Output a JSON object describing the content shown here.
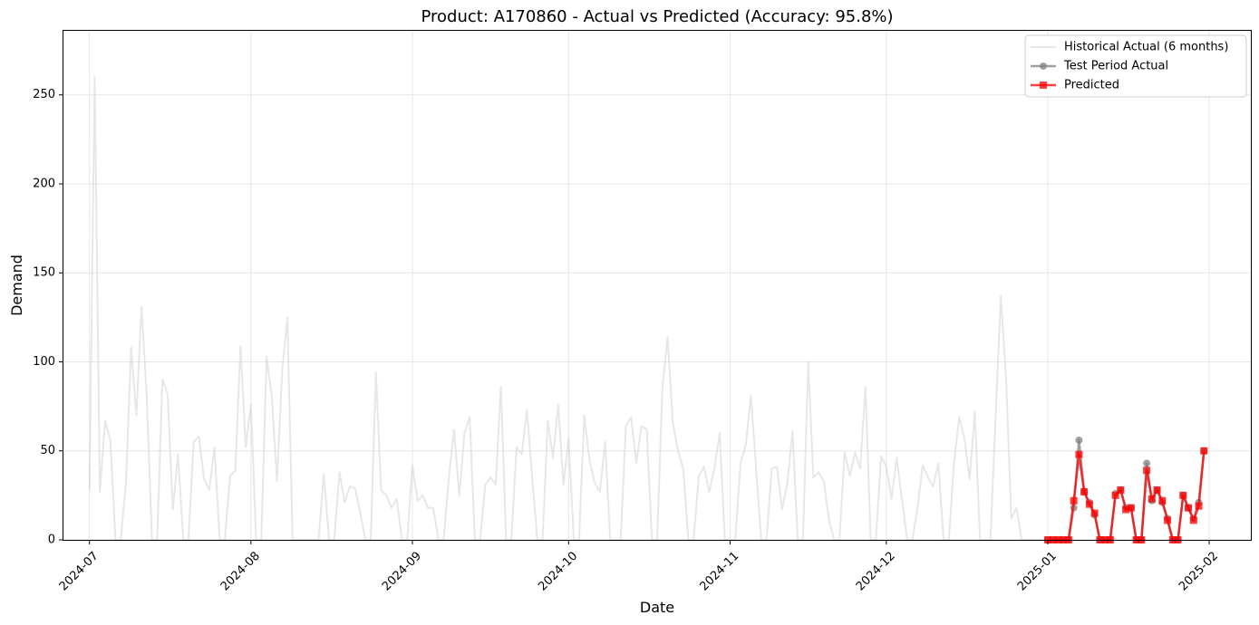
{
  "chart_data": {
    "type": "line",
    "title": "Product: A170860 - Actual vs Predicted (Accuracy: 95.8%)",
    "xlabel": "Date",
    "ylabel": "Demand",
    "xlim": [
      "2024-06-26",
      "2025-02-09"
    ],
    "ylim": [
      0,
      286
    ],
    "x_ticks": [
      "2024-07",
      "2024-08",
      "2024-09",
      "2024-10",
      "2024-11",
      "2024-12",
      "2025-01",
      "2025-02"
    ],
    "y_ticks": [
      0,
      50,
      100,
      150,
      200,
      250
    ],
    "grid": true,
    "legend_position": "top-right",
    "series": [
      {
        "name": "Historical Actual (6 months)",
        "color": "#d3d3d3",
        "marker": "none",
        "values": [
          [
            "2024-07-01",
            28
          ],
          [
            "2024-07-02",
            260
          ],
          [
            "2024-07-03",
            27
          ],
          [
            "2024-07-04",
            67
          ],
          [
            "2024-07-05",
            56
          ],
          [
            "2024-07-06",
            0
          ],
          [
            "2024-07-07",
            0
          ],
          [
            "2024-07-08",
            32
          ],
          [
            "2024-07-09",
            108
          ],
          [
            "2024-07-10",
            70
          ],
          [
            "2024-07-11",
            131
          ],
          [
            "2024-07-12",
            80
          ],
          [
            "2024-07-13",
            0
          ],
          [
            "2024-07-14",
            0
          ],
          [
            "2024-07-15",
            90
          ],
          [
            "2024-07-16",
            82
          ],
          [
            "2024-07-17",
            17
          ],
          [
            "2024-07-18",
            48
          ],
          [
            "2024-07-19",
            0
          ],
          [
            "2024-07-20",
            0
          ],
          [
            "2024-07-21",
            55
          ],
          [
            "2024-07-22",
            58
          ],
          [
            "2024-07-23",
            34
          ],
          [
            "2024-07-24",
            28
          ],
          [
            "2024-07-25",
            52
          ],
          [
            "2024-07-26",
            0
          ],
          [
            "2024-07-27",
            0
          ],
          [
            "2024-07-28",
            36
          ],
          [
            "2024-07-29",
            39
          ],
          [
            "2024-07-30",
            109
          ],
          [
            "2024-07-31",
            52
          ],
          [
            "2024-08-01",
            76
          ],
          [
            "2024-08-02",
            0
          ],
          [
            "2024-08-03",
            0
          ],
          [
            "2024-08-04",
            103
          ],
          [
            "2024-08-05",
            81
          ],
          [
            "2024-08-06",
            33
          ],
          [
            "2024-08-07",
            95
          ],
          [
            "2024-08-08",
            125
          ],
          [
            "2024-08-09",
            0
          ],
          [
            "2024-08-10",
            0
          ],
          [
            "2024-08-11",
            0
          ],
          [
            "2024-08-12",
            0
          ],
          [
            "2024-08-13",
            0
          ],
          [
            "2024-08-14",
            0
          ],
          [
            "2024-08-15",
            37
          ],
          [
            "2024-08-16",
            0
          ],
          [
            "2024-08-17",
            0
          ],
          [
            "2024-08-18",
            38
          ],
          [
            "2024-08-19",
            21
          ],
          [
            "2024-08-20",
            30
          ],
          [
            "2024-08-21",
            29
          ],
          [
            "2024-08-22",
            15
          ],
          [
            "2024-08-23",
            0
          ],
          [
            "2024-08-24",
            0
          ],
          [
            "2024-08-25",
            94
          ],
          [
            "2024-08-26",
            28
          ],
          [
            "2024-08-27",
            25
          ],
          [
            "2024-08-28",
            18
          ],
          [
            "2024-08-29",
            23
          ],
          [
            "2024-08-30",
            0
          ],
          [
            "2024-08-31",
            0
          ],
          [
            "2024-09-01",
            42
          ],
          [
            "2024-09-02",
            22
          ],
          [
            "2024-09-03",
            25
          ],
          [
            "2024-09-04",
            18
          ],
          [
            "2024-09-05",
            18
          ],
          [
            "2024-09-06",
            0
          ],
          [
            "2024-09-07",
            0
          ],
          [
            "2024-09-08",
            35
          ],
          [
            "2024-09-09",
            62
          ],
          [
            "2024-09-10",
            25
          ],
          [
            "2024-09-11",
            60
          ],
          [
            "2024-09-12",
            69
          ],
          [
            "2024-09-13",
            0
          ],
          [
            "2024-09-14",
            0
          ],
          [
            "2024-09-15",
            31
          ],
          [
            "2024-09-16",
            35
          ],
          [
            "2024-09-17",
            31
          ],
          [
            "2024-09-18",
            86
          ],
          [
            "2024-09-19",
            0
          ],
          [
            "2024-09-20",
            0
          ],
          [
            "2024-09-21",
            52
          ],
          [
            "2024-09-22",
            48
          ],
          [
            "2024-09-23",
            73
          ],
          [
            "2024-09-24",
            35
          ],
          [
            "2024-09-25",
            0
          ],
          [
            "2024-09-26",
            0
          ],
          [
            "2024-09-27",
            67
          ],
          [
            "2024-09-28",
            46
          ],
          [
            "2024-09-29",
            76
          ],
          [
            "2024-09-30",
            31
          ],
          [
            "2024-10-01",
            57
          ],
          [
            "2024-10-02",
            0
          ],
          [
            "2024-10-03",
            0
          ],
          [
            "2024-10-04",
            70
          ],
          [
            "2024-10-05",
            45
          ],
          [
            "2024-10-06",
            32
          ],
          [
            "2024-10-07",
            27
          ],
          [
            "2024-10-08",
            55
          ],
          [
            "2024-10-09",
            0
          ],
          [
            "2024-10-10",
            0
          ],
          [
            "2024-10-11",
            0
          ],
          [
            "2024-10-12",
            64
          ],
          [
            "2024-10-13",
            69
          ],
          [
            "2024-10-14",
            43
          ],
          [
            "2024-10-15",
            64
          ],
          [
            "2024-10-16",
            62
          ],
          [
            "2024-10-17",
            0
          ],
          [
            "2024-10-18",
            0
          ],
          [
            "2024-10-19",
            85
          ],
          [
            "2024-10-20",
            114
          ],
          [
            "2024-10-21",
            66
          ],
          [
            "2024-10-22",
            50
          ],
          [
            "2024-10-23",
            40
          ],
          [
            "2024-10-24",
            0
          ],
          [
            "2024-10-25",
            0
          ],
          [
            "2024-10-26",
            36
          ],
          [
            "2024-10-27",
            41
          ],
          [
            "2024-10-28",
            27
          ],
          [
            "2024-10-29",
            40
          ],
          [
            "2024-10-30",
            60
          ],
          [
            "2024-10-31",
            0
          ],
          [
            "2024-11-01",
            0
          ],
          [
            "2024-11-02",
            0
          ],
          [
            "2024-11-03",
            43
          ],
          [
            "2024-11-04",
            53
          ],
          [
            "2024-11-05",
            81
          ],
          [
            "2024-11-06",
            40
          ],
          [
            "2024-11-07",
            0
          ],
          [
            "2024-11-08",
            0
          ],
          [
            "2024-11-09",
            40
          ],
          [
            "2024-11-10",
            41
          ],
          [
            "2024-11-11",
            17
          ],
          [
            "2024-11-12",
            32
          ],
          [
            "2024-11-13",
            61
          ],
          [
            "2024-11-14",
            0
          ],
          [
            "2024-11-15",
            0
          ],
          [
            "2024-11-16",
            100
          ],
          [
            "2024-11-17",
            35
          ],
          [
            "2024-11-18",
            38
          ],
          [
            "2024-11-19",
            33
          ],
          [
            "2024-11-20",
            11
          ],
          [
            "2024-11-21",
            0
          ],
          [
            "2024-11-22",
            0
          ],
          [
            "2024-11-23",
            49
          ],
          [
            "2024-11-24",
            36
          ],
          [
            "2024-11-25",
            49
          ],
          [
            "2024-11-26",
            40
          ],
          [
            "2024-11-27",
            86
          ],
          [
            "2024-11-28",
            0
          ],
          [
            "2024-11-29",
            0
          ],
          [
            "2024-11-30",
            47
          ],
          [
            "2024-12-01",
            41
          ],
          [
            "2024-12-02",
            23
          ],
          [
            "2024-12-03",
            46
          ],
          [
            "2024-12-04",
            23
          ],
          [
            "2024-12-05",
            0
          ],
          [
            "2024-12-06",
            0
          ],
          [
            "2024-12-07",
            18
          ],
          [
            "2024-12-08",
            42
          ],
          [
            "2024-12-09",
            35
          ],
          [
            "2024-12-10",
            30
          ],
          [
            "2024-12-11",
            43
          ],
          [
            "2024-12-12",
            0
          ],
          [
            "2024-12-13",
            0
          ],
          [
            "2024-12-14",
            43
          ],
          [
            "2024-12-15",
            69
          ],
          [
            "2024-12-16",
            57
          ],
          [
            "2024-12-17",
            34
          ],
          [
            "2024-12-18",
            72
          ],
          [
            "2024-12-19",
            0
          ],
          [
            "2024-12-20",
            0
          ],
          [
            "2024-12-21",
            0
          ],
          [
            "2024-12-22",
            70
          ],
          [
            "2024-12-23",
            137
          ],
          [
            "2024-12-24",
            91
          ],
          [
            "2024-12-25",
            12
          ],
          [
            "2024-12-26",
            18
          ],
          [
            "2024-12-27",
            0
          ],
          [
            "2024-12-28",
            0
          ],
          [
            "2024-12-29",
            0
          ],
          [
            "2024-12-30",
            0
          ],
          [
            "2024-12-31",
            0
          ]
        ]
      },
      {
        "name": "Test Period Actual",
        "color": "#808080",
        "marker": "circle",
        "values": [
          [
            "2025-01-01",
            0
          ],
          [
            "2025-01-02",
            0
          ],
          [
            "2025-01-03",
            0
          ],
          [
            "2025-01-04",
            0
          ],
          [
            "2025-01-05",
            0
          ],
          [
            "2025-01-06",
            18
          ],
          [
            "2025-01-07",
            56
          ],
          [
            "2025-01-08",
            27
          ],
          [
            "2025-01-09",
            21
          ],
          [
            "2025-01-10",
            14
          ],
          [
            "2025-01-11",
            0
          ],
          [
            "2025-01-12",
            0
          ],
          [
            "2025-01-13",
            0
          ],
          [
            "2025-01-14",
            26
          ],
          [
            "2025-01-15",
            28
          ],
          [
            "2025-01-16",
            18
          ],
          [
            "2025-01-17",
            18
          ],
          [
            "2025-01-18",
            0
          ],
          [
            "2025-01-19",
            0
          ],
          [
            "2025-01-20",
            43
          ],
          [
            "2025-01-21",
            22
          ],
          [
            "2025-01-22",
            28
          ],
          [
            "2025-01-23",
            21
          ],
          [
            "2025-01-24",
            12
          ],
          [
            "2025-01-25",
            0
          ],
          [
            "2025-01-26",
            0
          ],
          [
            "2025-01-27",
            25
          ],
          [
            "2025-01-28",
            18
          ],
          [
            "2025-01-29",
            12
          ],
          [
            "2025-01-30",
            21
          ],
          [
            "2025-01-31",
            50
          ]
        ]
      },
      {
        "name": "Predicted",
        "color": "#ff0000",
        "marker": "square",
        "values": [
          [
            "2025-01-01",
            0
          ],
          [
            "2025-01-02",
            0
          ],
          [
            "2025-01-03",
            0
          ],
          [
            "2025-01-04",
            0
          ],
          [
            "2025-01-05",
            0
          ],
          [
            "2025-01-06",
            22
          ],
          [
            "2025-01-07",
            48
          ],
          [
            "2025-01-08",
            27
          ],
          [
            "2025-01-09",
            20
          ],
          [
            "2025-01-10",
            15
          ],
          [
            "2025-01-11",
            0
          ],
          [
            "2025-01-12",
            0
          ],
          [
            "2025-01-13",
            0
          ],
          [
            "2025-01-14",
            25
          ],
          [
            "2025-01-15",
            28
          ],
          [
            "2025-01-16",
            17
          ],
          [
            "2025-01-17",
            18
          ],
          [
            "2025-01-18",
            0
          ],
          [
            "2025-01-19",
            0
          ],
          [
            "2025-01-20",
            39
          ],
          [
            "2025-01-21",
            23
          ],
          [
            "2025-01-22",
            28
          ],
          [
            "2025-01-23",
            22
          ],
          [
            "2025-01-24",
            11
          ],
          [
            "2025-01-25",
            0
          ],
          [
            "2025-01-26",
            0
          ],
          [
            "2025-01-27",
            25
          ],
          [
            "2025-01-28",
            18
          ],
          [
            "2025-01-29",
            11
          ],
          [
            "2025-01-30",
            19
          ],
          [
            "2025-01-31",
            50
          ]
        ]
      }
    ]
  }
}
